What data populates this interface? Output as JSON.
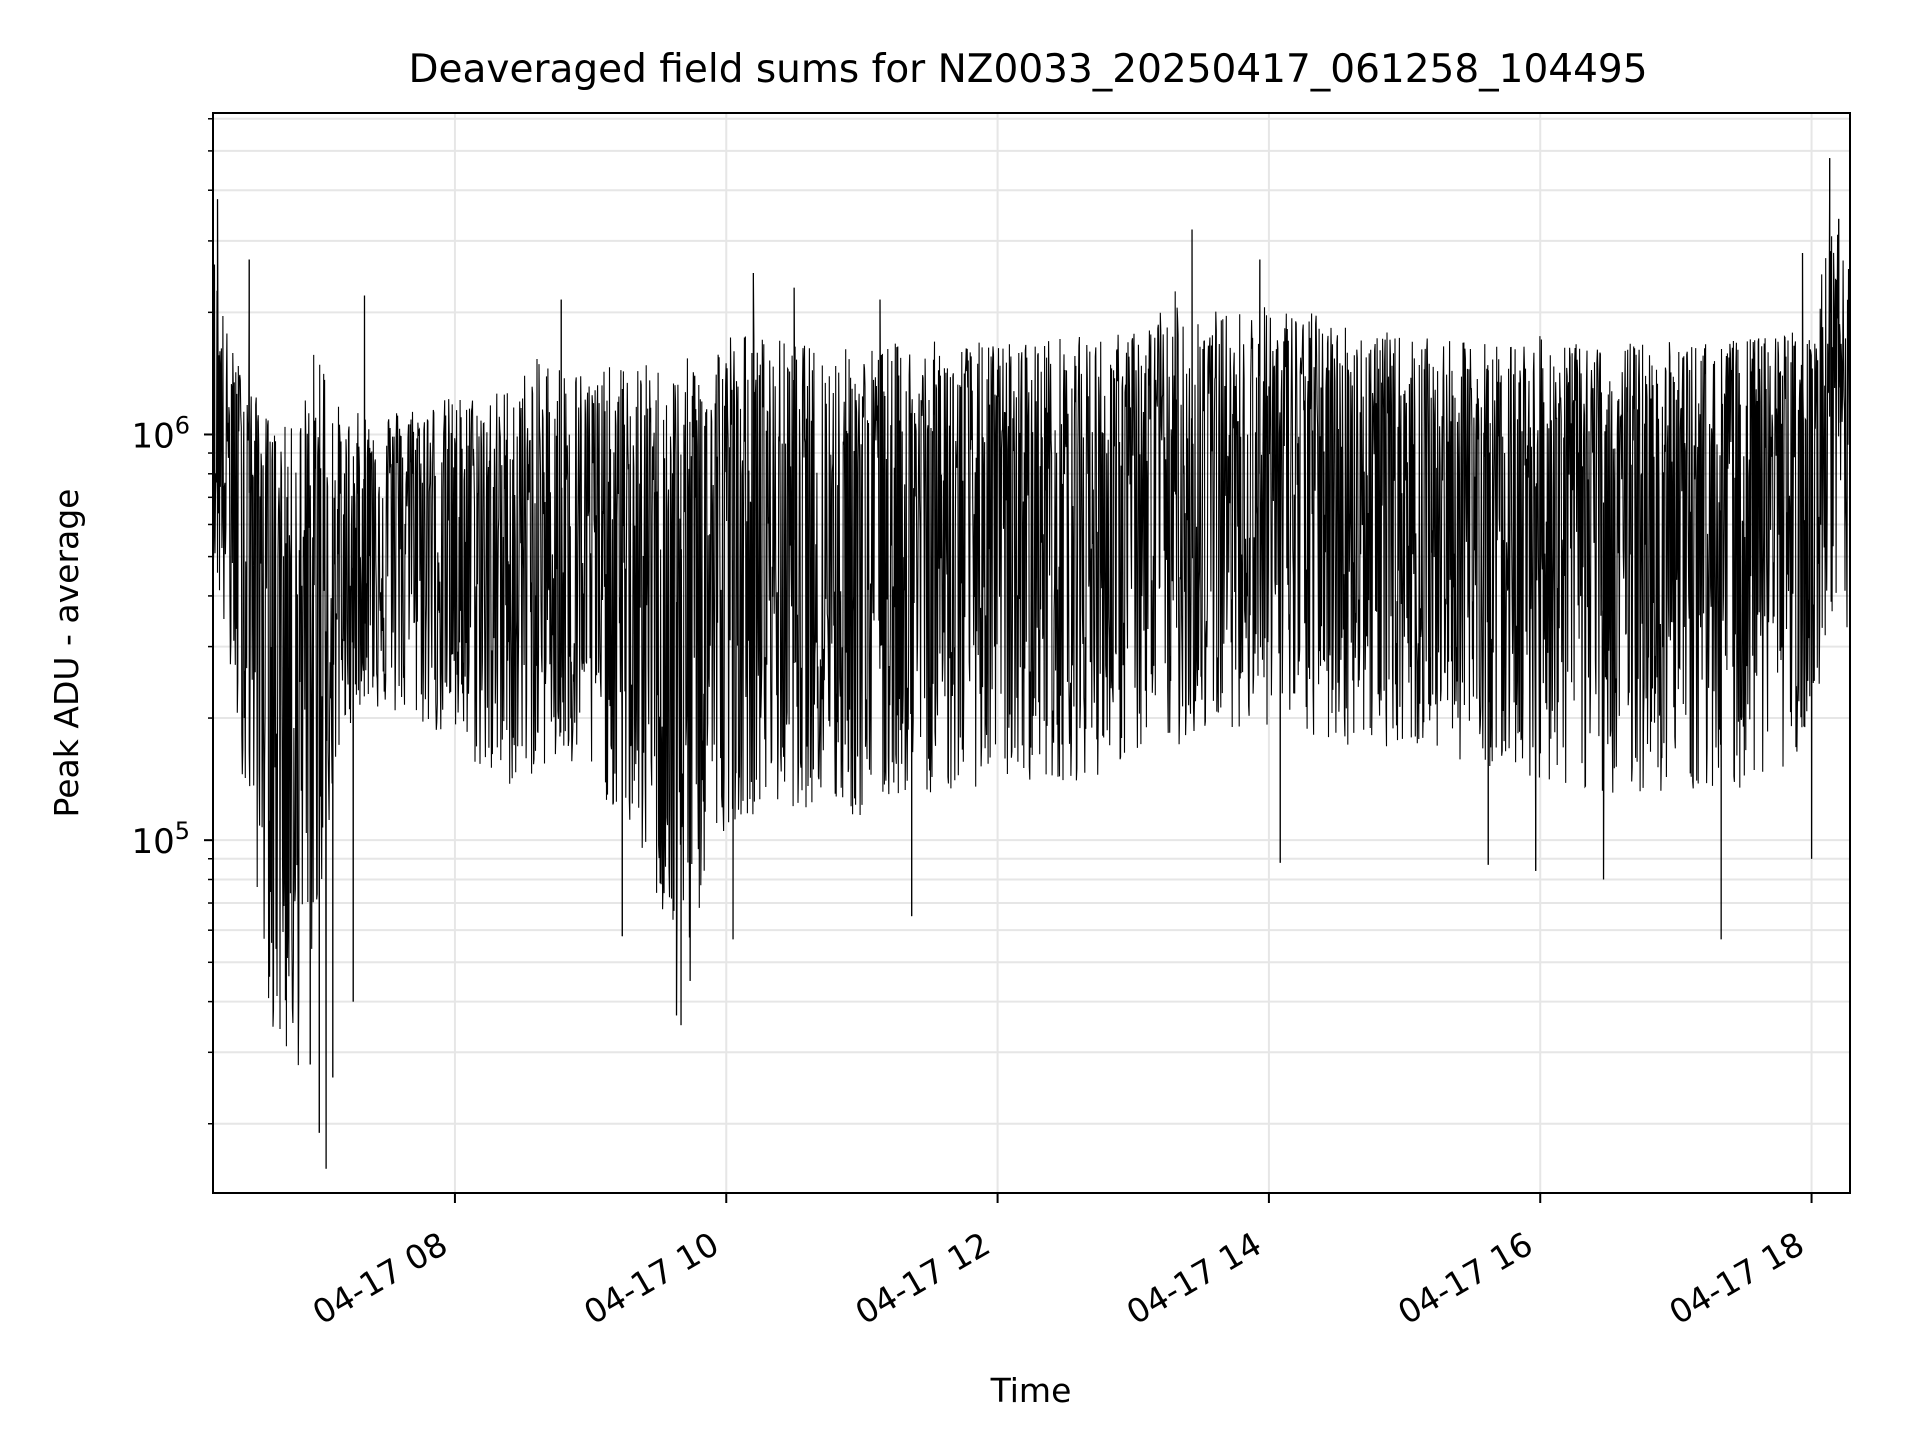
{
  "chart_data": {
    "type": "line",
    "title": "Deaveraged field sums for NZ0033_20250417_061258_104495",
    "xlabel": "Time",
    "ylabel": "Peak ADU - average",
    "yscale": "log",
    "ylim": [
      13500,
      6200000
    ],
    "xlim": [
      "2025-04-17 06:13",
      "2025-04-17 18:17"
    ],
    "xticks": [
      {
        "value": "2025-04-17 08:00",
        "label": "04-17 08"
      },
      {
        "value": "2025-04-17 10:00",
        "label": "04-17 10"
      },
      {
        "value": "2025-04-17 12:00",
        "label": "04-17 12"
      },
      {
        "value": "2025-04-17 14:00",
        "label": "04-17 14"
      },
      {
        "value": "2025-04-17 16:00",
        "label": "04-17 16"
      },
      {
        "value": "2025-04-17 18:00",
        "label": "04-17 18"
      }
    ],
    "yticks": [
      {
        "value": 100000,
        "base": "10",
        "exp": "5"
      },
      {
        "value": 1000000,
        "base": "10",
        "exp": "6"
      }
    ],
    "grid": true,
    "legend": "none",
    "series": [
      {
        "color": "#000000",
        "x": [
          "2025-04-17 06:13",
          "2025-04-17 06:20",
          "2025-04-17 06:30",
          "2025-04-17 06:40",
          "2025-04-17 06:50",
          "2025-04-17 07:00",
          "2025-04-17 07:10",
          "2025-04-17 07:20",
          "2025-04-17 07:30",
          "2025-04-17 07:45",
          "2025-04-17 08:00",
          "2025-04-17 08:20",
          "2025-04-17 08:40",
          "2025-04-17 09:00",
          "2025-04-17 09:20",
          "2025-04-17 09:40",
          "2025-04-17 10:00",
          "2025-04-17 10:20",
          "2025-04-17 10:40",
          "2025-04-17 11:00",
          "2025-04-17 11:20",
          "2025-04-17 11:40",
          "2025-04-17 12:00",
          "2025-04-17 12:20",
          "2025-04-17 12:40",
          "2025-04-17 13:00",
          "2025-04-17 13:20",
          "2025-04-17 13:40",
          "2025-04-17 14:00",
          "2025-04-17 14:20",
          "2025-04-17 14:40",
          "2025-04-17 15:00",
          "2025-04-17 15:20",
          "2025-04-17 15:40",
          "2025-04-17 16:00",
          "2025-04-17 16:20",
          "2025-04-17 16:40",
          "2025-04-17 17:00",
          "2025-04-17 17:20",
          "2025-04-17 17:40",
          "2025-04-17 18:00",
          "2025-04-17 18:10",
          "2025-04-17 18:17"
        ],
        "y": [
          1100000,
          900000,
          700000,
          450000,
          350000,
          300000,
          400000,
          550000,
          700000,
          650000,
          550000,
          500000,
          500000,
          500000,
          450000,
          380000,
          480000,
          550000,
          550000,
          550000,
          600000,
          600000,
          600000,
          650000,
          650000,
          650000,
          700000,
          800000,
          800000,
          850000,
          800000,
          700000,
          700000,
          700000,
          750000,
          700000,
          650000,
          700000,
          650000,
          750000,
          800000,
          1200000,
          800000
        ],
        "upper": [
          3000000,
          1700000,
          1300000,
          1050000,
          1050000,
          1900000,
          1100000,
          1150000,
          1150000,
          1200000,
          1250000,
          1300000,
          1600000,
          1450000,
          1500000,
          1500000,
          1850000,
          1750000,
          1650000,
          1650000,
          1700000,
          1700000,
          1700000,
          1750000,
          1750000,
          1800000,
          2300000,
          2000000,
          2100000,
          2000000,
          1850000,
          1750000,
          1700000,
          1700000,
          1750000,
          1650000,
          1700000,
          1700000,
          1700000,
          1750000,
          1900000,
          3500000,
          2500000
        ],
        "lower": [
          500000,
          250000,
          100000,
          30000,
          25000,
          70000,
          180000,
          220000,
          200000,
          190000,
          170000,
          130000,
          150000,
          140000,
          100000,
          45000,
          110000,
          120000,
          120000,
          110000,
          130000,
          130000,
          140000,
          140000,
          140000,
          160000,
          170000,
          190000,
          190000,
          170000,
          170000,
          170000,
          160000,
          150000,
          140000,
          130000,
          130000,
          130000,
          130000,
          140000,
          170000,
          300000,
          300000
        ],
        "spikes_high": [
          {
            "x": "2025-04-17 06:15",
            "y": 3800000
          },
          {
            "x": "2025-04-17 06:29",
            "y": 2700000
          },
          {
            "x": "2025-04-17 07:20",
            "y": 2200000
          },
          {
            "x": "2025-04-17 08:47",
            "y": 2150000
          },
          {
            "x": "2025-04-17 10:12",
            "y": 2500000
          },
          {
            "x": "2025-04-17 10:30",
            "y": 2300000
          },
          {
            "x": "2025-04-17 11:08",
            "y": 2150000
          },
          {
            "x": "2025-04-17 13:26",
            "y": 3200000
          },
          {
            "x": "2025-04-17 13:56",
            "y": 2700000
          },
          {
            "x": "2025-04-17 17:56",
            "y": 2800000
          },
          {
            "x": "2025-04-17 18:08",
            "y": 4800000
          },
          {
            "x": "2025-04-17 18:12",
            "y": 3400000
          }
        ],
        "spikes_low": [
          {
            "x": "2025-04-17 06:46",
            "y": 60000
          },
          {
            "x": "2025-04-17 06:56",
            "y": 28000
          },
          {
            "x": "2025-04-17 07:00",
            "y": 19000
          },
          {
            "x": "2025-04-17 07:03",
            "y": 15500
          },
          {
            "x": "2025-04-17 07:06",
            "y": 26000
          },
          {
            "x": "2025-04-17 07:15",
            "y": 40000
          },
          {
            "x": "2025-04-17 09:14",
            "y": 58000
          },
          {
            "x": "2025-04-17 09:38",
            "y": 37000
          },
          {
            "x": "2025-04-17 09:40",
            "y": 35000
          },
          {
            "x": "2025-04-17 09:44",
            "y": 45000
          },
          {
            "x": "2025-04-17 10:03",
            "y": 57000
          },
          {
            "x": "2025-04-17 11:22",
            "y": 65000
          },
          {
            "x": "2025-04-17 14:05",
            "y": 88000
          },
          {
            "x": "2025-04-17 15:37",
            "y": 87000
          },
          {
            "x": "2025-04-17 15:58",
            "y": 84000
          },
          {
            "x": "2025-04-17 16:28",
            "y": 80000
          },
          {
            "x": "2025-04-17 17:20",
            "y": 57000
          },
          {
            "x": "2025-04-17 18:00",
            "y": 90000
          }
        ]
      }
    ]
  }
}
